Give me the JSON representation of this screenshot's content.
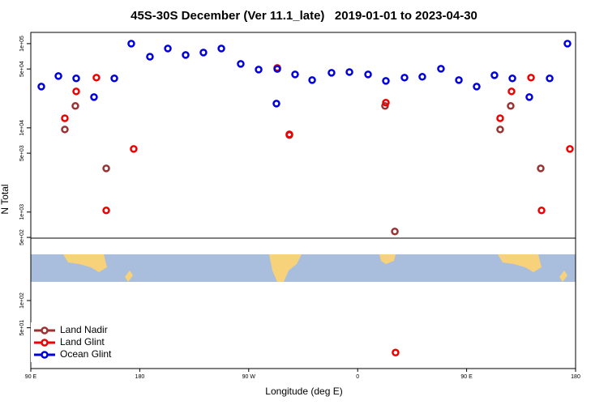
{
  "chart_data": {
    "type": "scatter",
    "title": "45S-30S December (Ver 11.1_late)   2019-01-01 to 2023-04-30",
    "x_label": "Longitude (deg E)",
    "y_label": "N Total",
    "log_y": true,
    "legend_position": "bottom-left",
    "xlim": [
      90,
      540
    ],
    "xticks": [
      {
        "value": 90,
        "label": "90 E"
      },
      180,
      {
        "value": 270,
        "label": "90 W"
      },
      {
        "value": 360,
        "label": "0"
      },
      {
        "value": 450,
        "label": "90 E"
      },
      {
        "value": 540,
        "label": "180"
      }
    ],
    "ylim": [
      490,
      136000
    ],
    "yticks": [
      {
        "value": 100000,
        "label": "1e+05"
      },
      {
        "value": 50000,
        "label": "5e+04"
      },
      {
        "value": 10000,
        "label": "1e+04"
      },
      {
        "value": 5000,
        "label": "5e+03"
      },
      {
        "value": 1000,
        "label": "1e+03"
      },
      {
        "value": 500,
        "label": "5e+02"
      }
    ],
    "y2lim": [
      17.7,
      490
    ],
    "y2ticks": [
      {
        "value": 100,
        "label": "1e+02"
      },
      {
        "value": 50,
        "label": "5e+01"
      }
    ],
    "series": [
      {
        "name": "Land Nadir",
        "color": "#993333",
        "x": [
          118.1,
          126.8,
          152.3,
          303.6,
          382.6,
          390.7,
          477.7,
          486.4,
          511.2
        ],
        "values": [
          9570,
          18200,
          3300,
          8200,
          18200,
          588,
          9570,
          18200,
          3300
        ]
      },
      {
        "name": "Land Glint",
        "color": "#ee0000",
        "x": [
          118.1,
          127.5,
          144.2,
          152.3,
          175.0,
          293.6,
          303.6,
          383.3,
          391.3,
          477.7,
          487.1,
          503.2,
          511.9,
          535.3
        ],
        "values": [
          13000,
          27100,
          39500,
          1045,
          5620,
          51500,
          8380,
          19900,
          26.6,
          13000,
          27100,
          39500,
          1045,
          5620
        ]
      },
      {
        "name": "Ocean Glint",
        "color": "#0000dd",
        "x": [
          98.7,
          112.8,
          127.5,
          142.2,
          159.0,
          173.0,
          188.4,
          203.2,
          217.9,
          232.6,
          247.4,
          263.4,
          278.2,
          292.9,
          293.6,
          308.3,
          322.4,
          338.4,
          353.2,
          368.6,
          383.3,
          398.7,
          413.4,
          428.8,
          443.6,
          458.3,
          473.0,
          487.8,
          501.8,
          518.6,
          533.3
        ],
        "values": [
          30900,
          41200,
          38700,
          23200,
          38700,
          100000,
          70000,
          87500,
          73300,
          78400,
          87500,
          57500,
          49200,
          19400,
          50000,
          43100,
          36900,
          45100,
          46000,
          43100,
          36100,
          39500,
          40400,
          50300,
          36900,
          30900,
          42200,
          38700,
          23200,
          38700,
          100000
        ]
      }
    ]
  }
}
